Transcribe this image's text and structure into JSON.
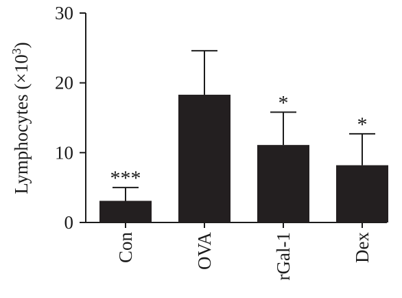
{
  "chart_data": {
    "type": "bar",
    "categories": [
      "Con",
      "OVA",
      "rGal-1",
      "Dex"
    ],
    "values": [
      3.1,
      18.3,
      11.1,
      8.2
    ],
    "errors": [
      1.9,
      6.3,
      4.7,
      4.5
    ],
    "significance": [
      "***",
      "",
      "*",
      "*"
    ],
    "ylabel": "Lymphocytes (×10",
    "ylabel_sup": "3",
    "ylabel_close": ")",
    "ylim": [
      0,
      30
    ],
    "yticks": [
      0,
      10,
      20,
      30
    ],
    "bar_color": "#231f20",
    "axis_color": "#1a1a1a"
  }
}
